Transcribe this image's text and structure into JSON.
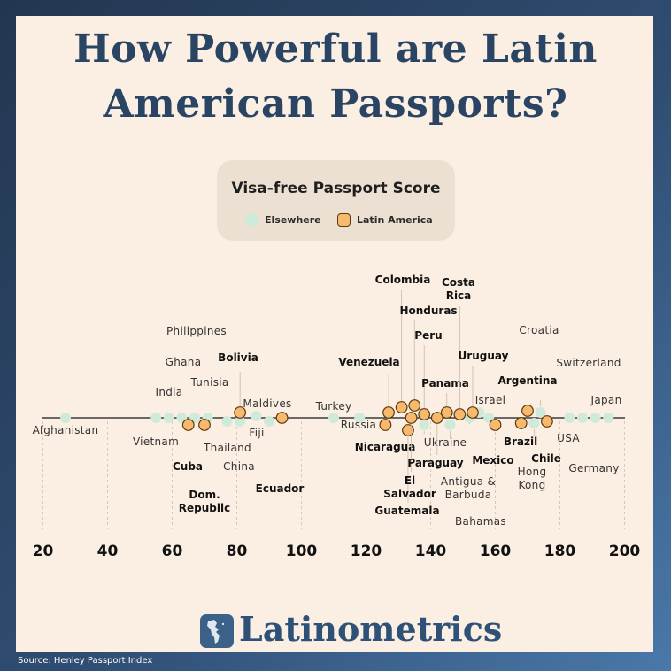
{
  "title_line1": "How Powerful are Latin",
  "title_line2": "American Passports?",
  "legend": {
    "title": "Visa-free Passport Score",
    "elsewhere": "Elsewhere",
    "latin_america": "Latin America"
  },
  "colors": {
    "elsewhere": "#cfeadb",
    "latin_america": "#f7b96b",
    "latin_stroke": "#5a3a12",
    "title": "#2a4563"
  },
  "brand": "Latinometrics",
  "logo_icon": "americas-map-icon",
  "source": "Source: Henley Passport Index",
  "chart_data": {
    "type": "scatter",
    "xlim": [
      20,
      200
    ],
    "xticks": [
      20,
      40,
      60,
      80,
      100,
      120,
      140,
      160,
      180,
      200
    ],
    "grid": "vertical dashed",
    "series": [
      {
        "name": "Elsewhere",
        "points": [
          {
            "x": 27,
            "label": "Afghanistan"
          },
          {
            "x": 55,
            "label": "Vietnam"
          },
          {
            "x": 59,
            "label": "India"
          },
          {
            "x": 63,
            "label": "Philippines"
          },
          {
            "x": 67,
            "label": "Ghana"
          },
          {
            "x": 71,
            "label": "Tunisia"
          },
          {
            "x": 77,
            "label": "China"
          },
          {
            "x": 81,
            "label": "Thailand"
          },
          {
            "x": 86,
            "label": "Maldives"
          },
          {
            "x": 90,
            "label": "Fiji"
          },
          {
            "x": 110,
            "label": "Turkey"
          },
          {
            "x": 118,
            "label": "Russia"
          },
          {
            "x": 138,
            "label": "Ukraine"
          },
          {
            "x": 146,
            "label": "Antigua & Barbuda"
          },
          {
            "x": 152,
            "label": "Bahamas"
          },
          {
            "x": 155,
            "label": ""
          },
          {
            "x": 158,
            "label": "Israel"
          },
          {
            "x": 172,
            "label": "Hong Kong"
          },
          {
            "x": 174,
            "label": "Croatia"
          },
          {
            "x": 183,
            "label": "USA"
          },
          {
            "x": 187,
            "label": "Germany"
          },
          {
            "x": 191,
            "label": "Switzerland"
          },
          {
            "x": 195,
            "label": "Japan"
          }
        ]
      },
      {
        "name": "Latin America",
        "points": [
          {
            "x": 65,
            "label": "Cuba"
          },
          {
            "x": 70,
            "label": "Dom. Republic"
          },
          {
            "x": 81,
            "label": "Bolivia"
          },
          {
            "x": 94,
            "label": "Ecuador"
          },
          {
            "x": 126,
            "label": "Nicaragua"
          },
          {
            "x": 127,
            "label": "Venezuela"
          },
          {
            "x": 131,
            "label": "Colombia"
          },
          {
            "x": 133,
            "label": "Guatemala"
          },
          {
            "x": 134,
            "label": "El Salvador"
          },
          {
            "x": 135,
            "label": "Honduras"
          },
          {
            "x": 138,
            "label": "Peru"
          },
          {
            "x": 142,
            "label": "Paraguay"
          },
          {
            "x": 145,
            "label": "Panama"
          },
          {
            "x": 149,
            "label": "Costa Rica"
          },
          {
            "x": 153,
            "label": "Uruguay"
          },
          {
            "x": 160,
            "label": "Mexico"
          },
          {
            "x": 168,
            "label": "Brazil"
          },
          {
            "x": 170,
            "label": "Argentina"
          },
          {
            "x": 176,
            "label": "Chile"
          }
        ]
      }
    ]
  }
}
